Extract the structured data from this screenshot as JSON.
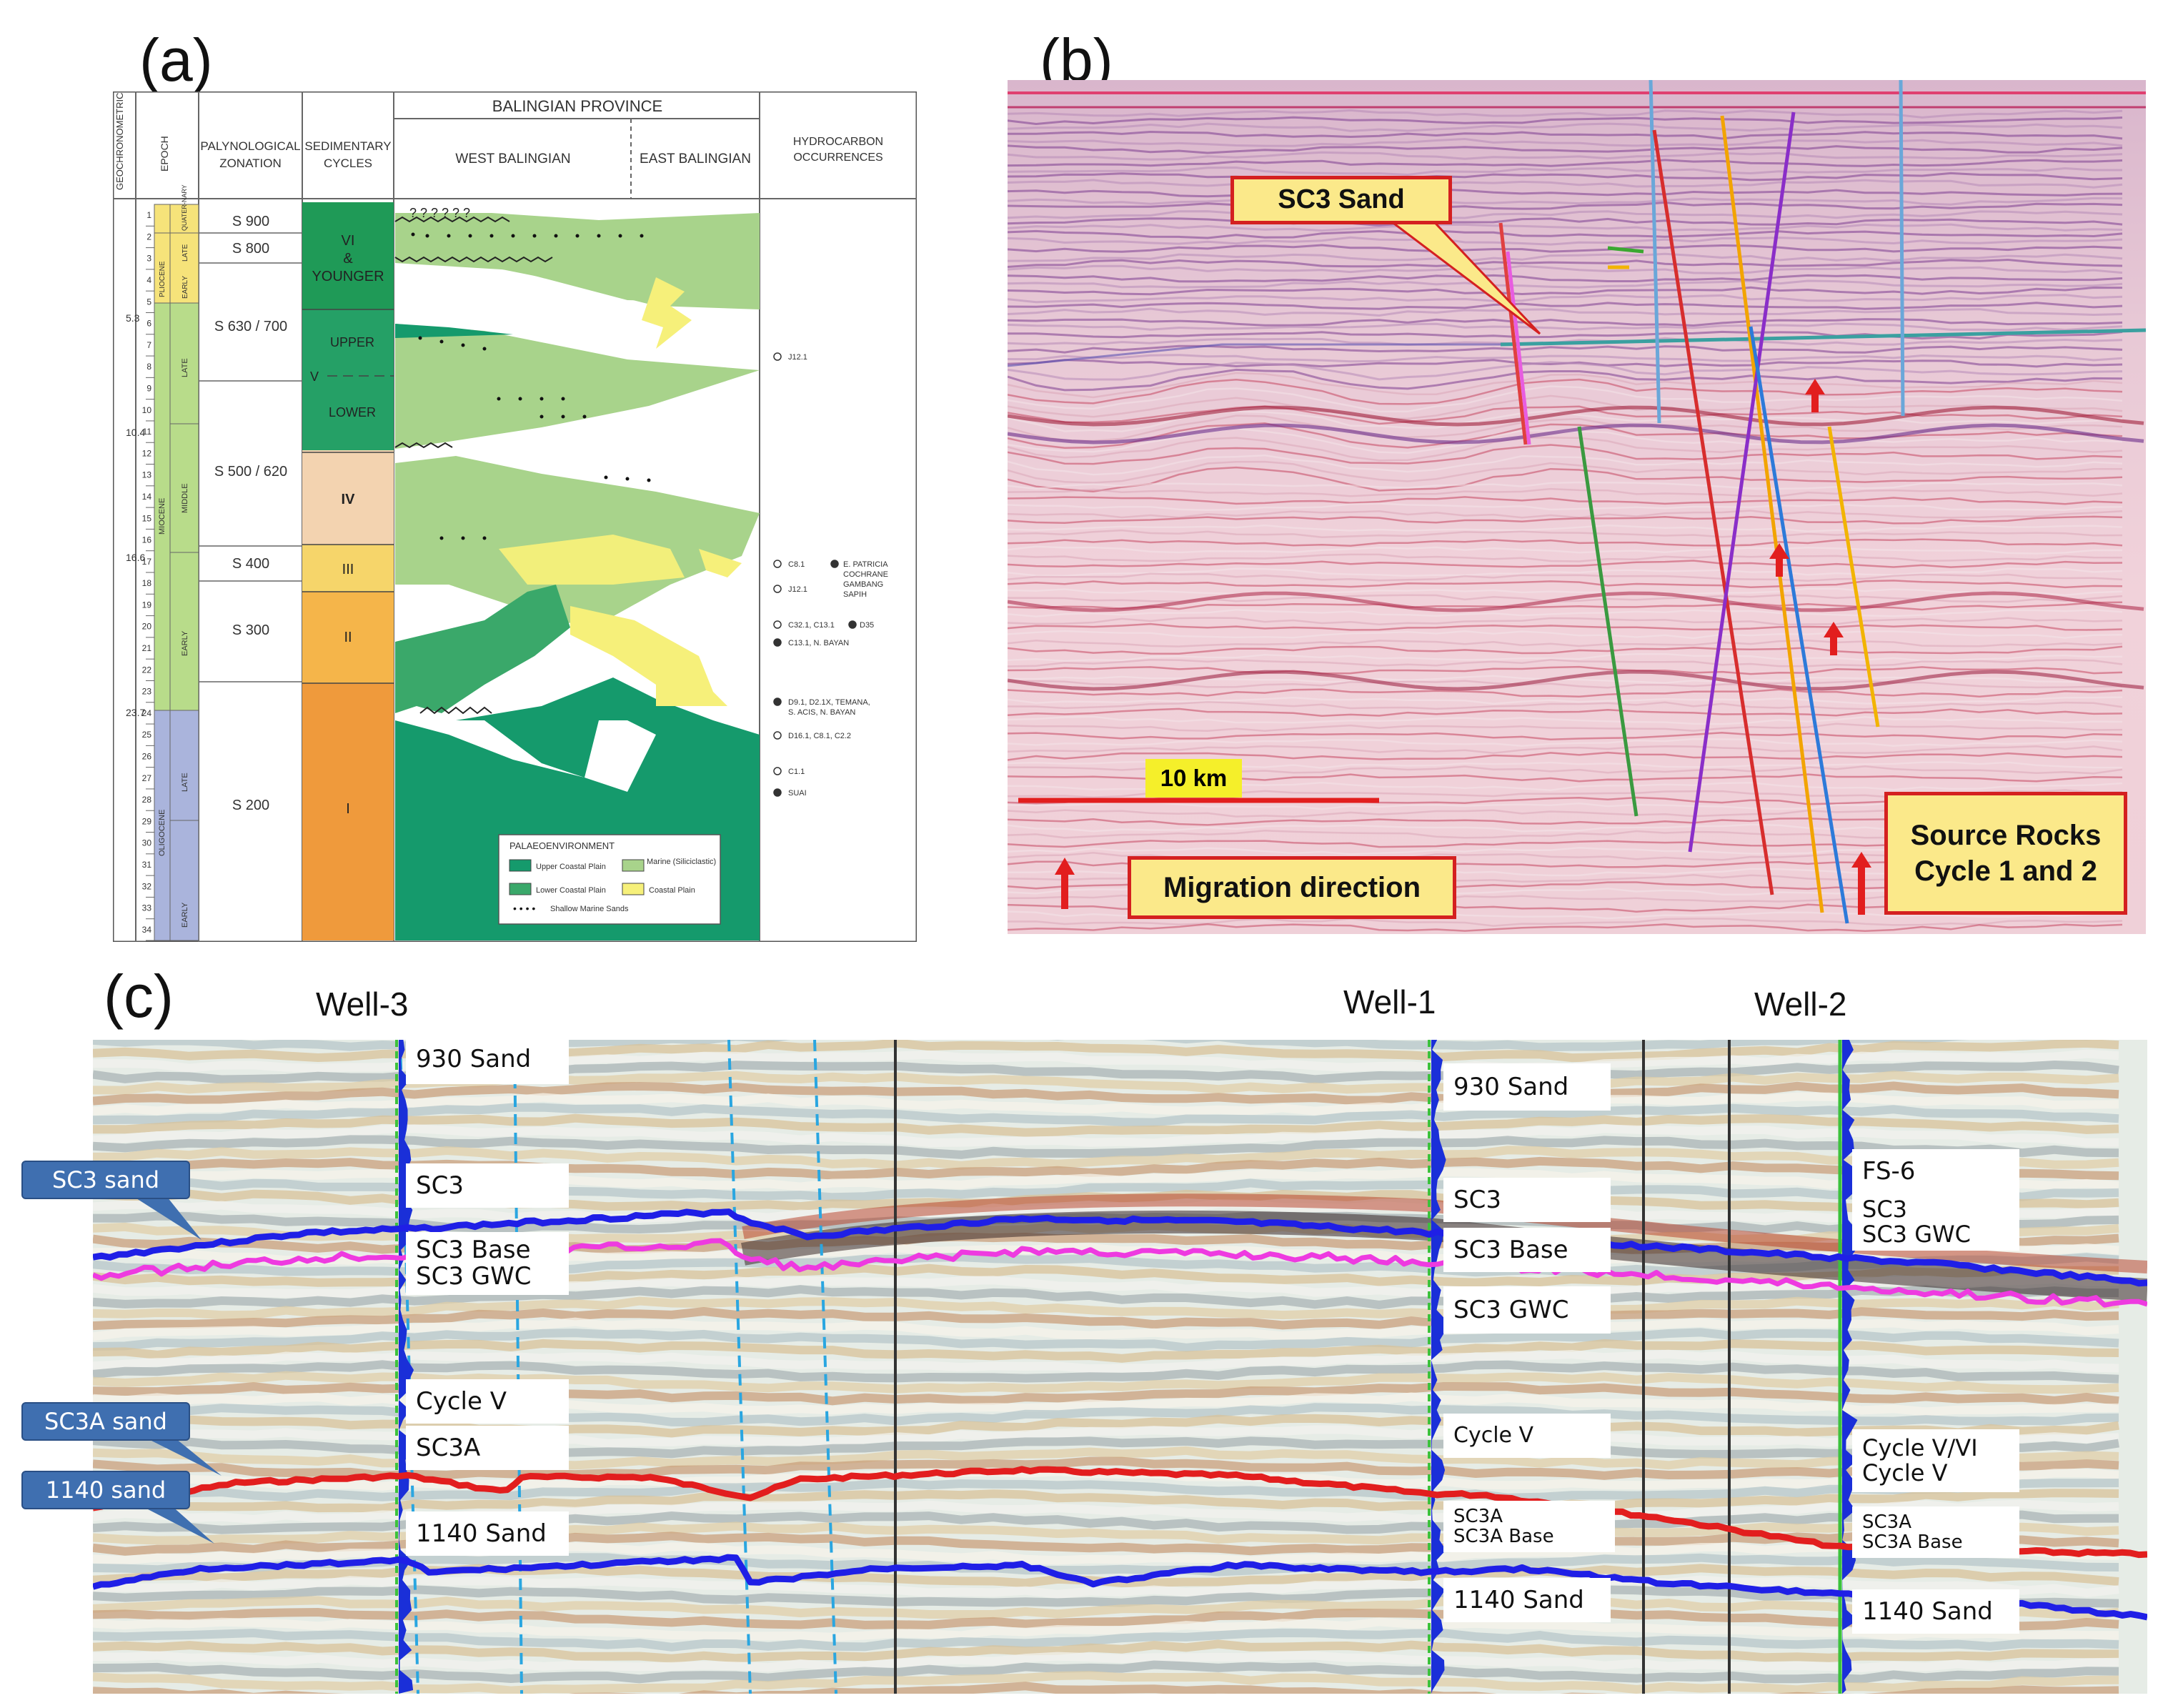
{
  "panels": {
    "a": "(a)",
    "b": "(b)",
    "c": "(c)"
  },
  "panel_a": {
    "header": {
      "geo_scale": "GEOCHRONOMETRIC SCALE IN MA",
      "epoch": "EPOCH",
      "palyno": "PALYNOLOGICAL ZONATION",
      "cycles": "SEDIMENTARY CYCLES",
      "province": "BALINGIAN PROVINCE",
      "west": "WEST BALINGIAN",
      "east": "EAST BALINGIAN",
      "hydro": "HYDROCARBON OCCURRENCES"
    },
    "ages": [
      "1",
      "2",
      "3",
      "4",
      "5",
      "6",
      "7",
      "8",
      "9",
      "10",
      "11",
      "12",
      "13",
      "14",
      "15",
      "16",
      "17",
      "18",
      "19",
      "20",
      "21",
      "22",
      "23",
      "24",
      "25",
      "26",
      "27",
      "28",
      "29",
      "30",
      "31",
      "32",
      "33",
      "34"
    ],
    "boundary_ages": [
      "5.3",
      "10.4",
      "16.6",
      "23.7"
    ],
    "epochs": {
      "quat": "QUATER-NARY",
      "plio_late": "LATE",
      "plio_early": "EARLY",
      "pliocene": "PLIOCENE",
      "mio_late": "LATE",
      "mio_middle": "MIDDLE",
      "mio_early": "EARLY",
      "miocene": "MIOCENE",
      "oligocene": "OLIGOCENE",
      "olig_late": "LATE",
      "olig_early": "EARLY"
    },
    "zones": [
      "S 900",
      "S 800",
      "S 630 / 700",
      "S 500 / 620",
      "S 400",
      "S 300",
      "S 200"
    ],
    "cycles": {
      "vi": [
        "VI",
        "&",
        "YOUNGER"
      ],
      "v": "V",
      "upper": "UPPER",
      "lower": "LOWER",
      "iv": "IV",
      "iii": "III",
      "ii": "II",
      "i": "I"
    },
    "hydrocarbons": [
      "J12.1",
      "C8.1",
      "E. PATRICIA",
      "COCHRANE",
      "GAMBANG",
      "SAPIH",
      "J12.1",
      "C32.1, C13.1",
      "D35",
      "C13.1, N. BAYAN",
      "D9.1, D2.1X, TEMANA,",
      "S. ACIS, N. BAYAN",
      "D16.1, C8.1, C2.2",
      "C1.1",
      "SUAI"
    ],
    "legend": {
      "title": "PALAEOENVIRONMENT",
      "upper": "Upper Coastal Plain",
      "marine": "Marine (Siliciclastic)",
      "lower": "Lower Coastal Plain",
      "coastal": "Coastal Plain",
      "sands": "Shallow Marine Sands"
    },
    "colors": {
      "dark_green": "#159a6c",
      "mid_green": "#3aa86a",
      "light_green": "#a8d38b",
      "yellow": "#f6f07a",
      "orange": "#f0a33e",
      "beige": "#f3d3b0",
      "blue_epoch": "#aab4dc",
      "green_epoch": "#b8dc8a"
    }
  },
  "panel_b": {
    "sc3_sand": "SC3 Sand",
    "scale": "10 km",
    "migration": "Migration direction",
    "source_rocks": [
      "Source Rocks",
      "Cycle 1 and 2"
    ]
  },
  "panel_c": {
    "wells": {
      "well3": "Well-3",
      "well1": "Well-1",
      "well2": "Well-2"
    },
    "callouts": {
      "sc3": "SC3 sand",
      "sc3a": "SC3A sand",
      "s1140": "1140 sand"
    },
    "well3_markers": [
      "930 Sand",
      "SC3",
      "SC3 Base",
      "SC3 GWC",
      "Cycle V",
      "SC3A",
      "1140 Sand"
    ],
    "well1_markers": [
      "930 Sand",
      "SC3",
      "SC3 Base",
      "SC3 GWC",
      "Cycle V",
      "SC3A",
      "SC3A Base",
      "1140 Sand"
    ],
    "well2_markers": [
      "FS-6",
      "SC3",
      "SC3 GWC",
      "Cycle V/VI",
      "Cycle V",
      "SC3A",
      "SC3A Base",
      "1140 Sand"
    ],
    "colors": {
      "blue": "#1f1fe6",
      "magenta": "#ee3ae0",
      "red": "#e21e1e"
    }
  }
}
